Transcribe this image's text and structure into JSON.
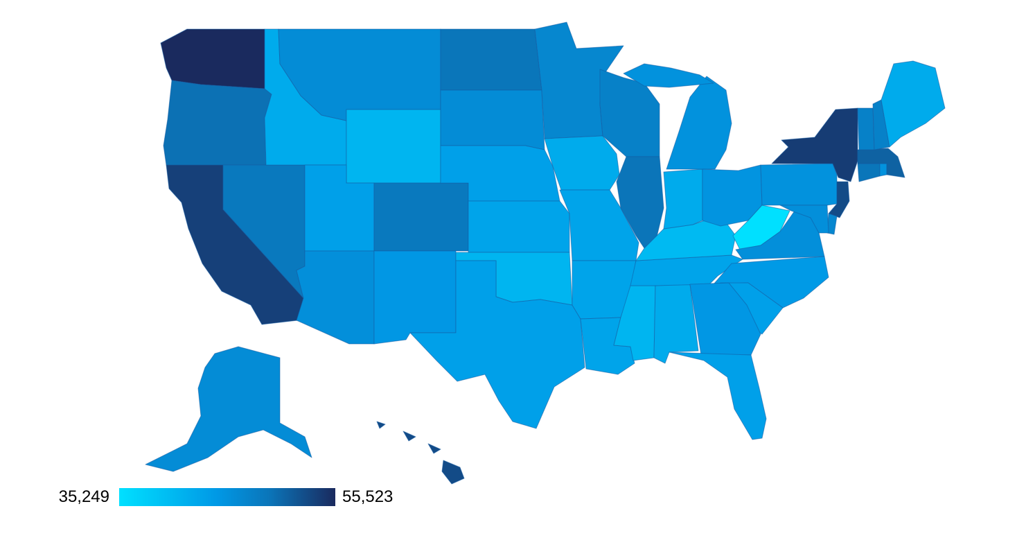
{
  "legend": {
    "min_label": "35,249",
    "max_label": "55,523",
    "min_value": 35249,
    "max_value": 55523,
    "colors": [
      "#00e0ff",
      "#0099e6",
      "#0b74b8",
      "#1a2a5e"
    ]
  },
  "states": [
    {
      "id": "WA",
      "level": 1.0
    },
    {
      "id": "OR",
      "level": 0.68
    },
    {
      "id": "CA",
      "level": 0.9
    },
    {
      "id": "NV",
      "level": 0.62
    },
    {
      "id": "ID",
      "level": 0.25
    },
    {
      "id": "MT",
      "level": 0.45
    },
    {
      "id": "WY",
      "level": 0.2
    },
    {
      "id": "UT",
      "level": 0.3
    },
    {
      "id": "AZ",
      "level": 0.42
    },
    {
      "id": "CO",
      "level": 0.62
    },
    {
      "id": "NM",
      "level": 0.35
    },
    {
      "id": "ND",
      "level": 0.65
    },
    {
      "id": "SD",
      "level": 0.45
    },
    {
      "id": "NE",
      "level": 0.3
    },
    {
      "id": "KS",
      "level": 0.28
    },
    {
      "id": "OK",
      "level": 0.2
    },
    {
      "id": "TX",
      "level": 0.3
    },
    {
      "id": "MN",
      "level": 0.5
    },
    {
      "id": "IA",
      "level": 0.25
    },
    {
      "id": "MO",
      "level": 0.28
    },
    {
      "id": "AR",
      "level": 0.28
    },
    {
      "id": "LA",
      "level": 0.28
    },
    {
      "id": "WI",
      "level": 0.55
    },
    {
      "id": "IL",
      "level": 0.66
    },
    {
      "id": "MS",
      "level": 0.2
    },
    {
      "id": "AL",
      "level": 0.25
    },
    {
      "id": "TN",
      "level": 0.28
    },
    {
      "id": "KY",
      "level": 0.18
    },
    {
      "id": "IN",
      "level": 0.25
    },
    {
      "id": "MI",
      "level": 0.4
    },
    {
      "id": "OH",
      "level": 0.38
    },
    {
      "id": "WV",
      "level": 0.0
    },
    {
      "id": "VA",
      "level": 0.42
    },
    {
      "id": "NC",
      "level": 0.33
    },
    {
      "id": "SC",
      "level": 0.3
    },
    {
      "id": "GA",
      "level": 0.35
    },
    {
      "id": "FL",
      "level": 0.3
    },
    {
      "id": "PA",
      "level": 0.4
    },
    {
      "id": "NY",
      "level": 0.92
    },
    {
      "id": "NJ",
      "level": 0.85
    },
    {
      "id": "DE",
      "level": 0.5
    },
    {
      "id": "MD",
      "level": 0.42
    },
    {
      "id": "CT",
      "level": 0.65
    },
    {
      "id": "RI",
      "level": 0.4
    },
    {
      "id": "MA",
      "level": 0.75
    },
    {
      "id": "VT",
      "level": 0.55
    },
    {
      "id": "NH",
      "level": 0.55
    },
    {
      "id": "ME",
      "level": 0.25
    },
    {
      "id": "AK",
      "level": 0.45
    },
    {
      "id": "HI",
      "level": 0.85
    }
  ]
}
